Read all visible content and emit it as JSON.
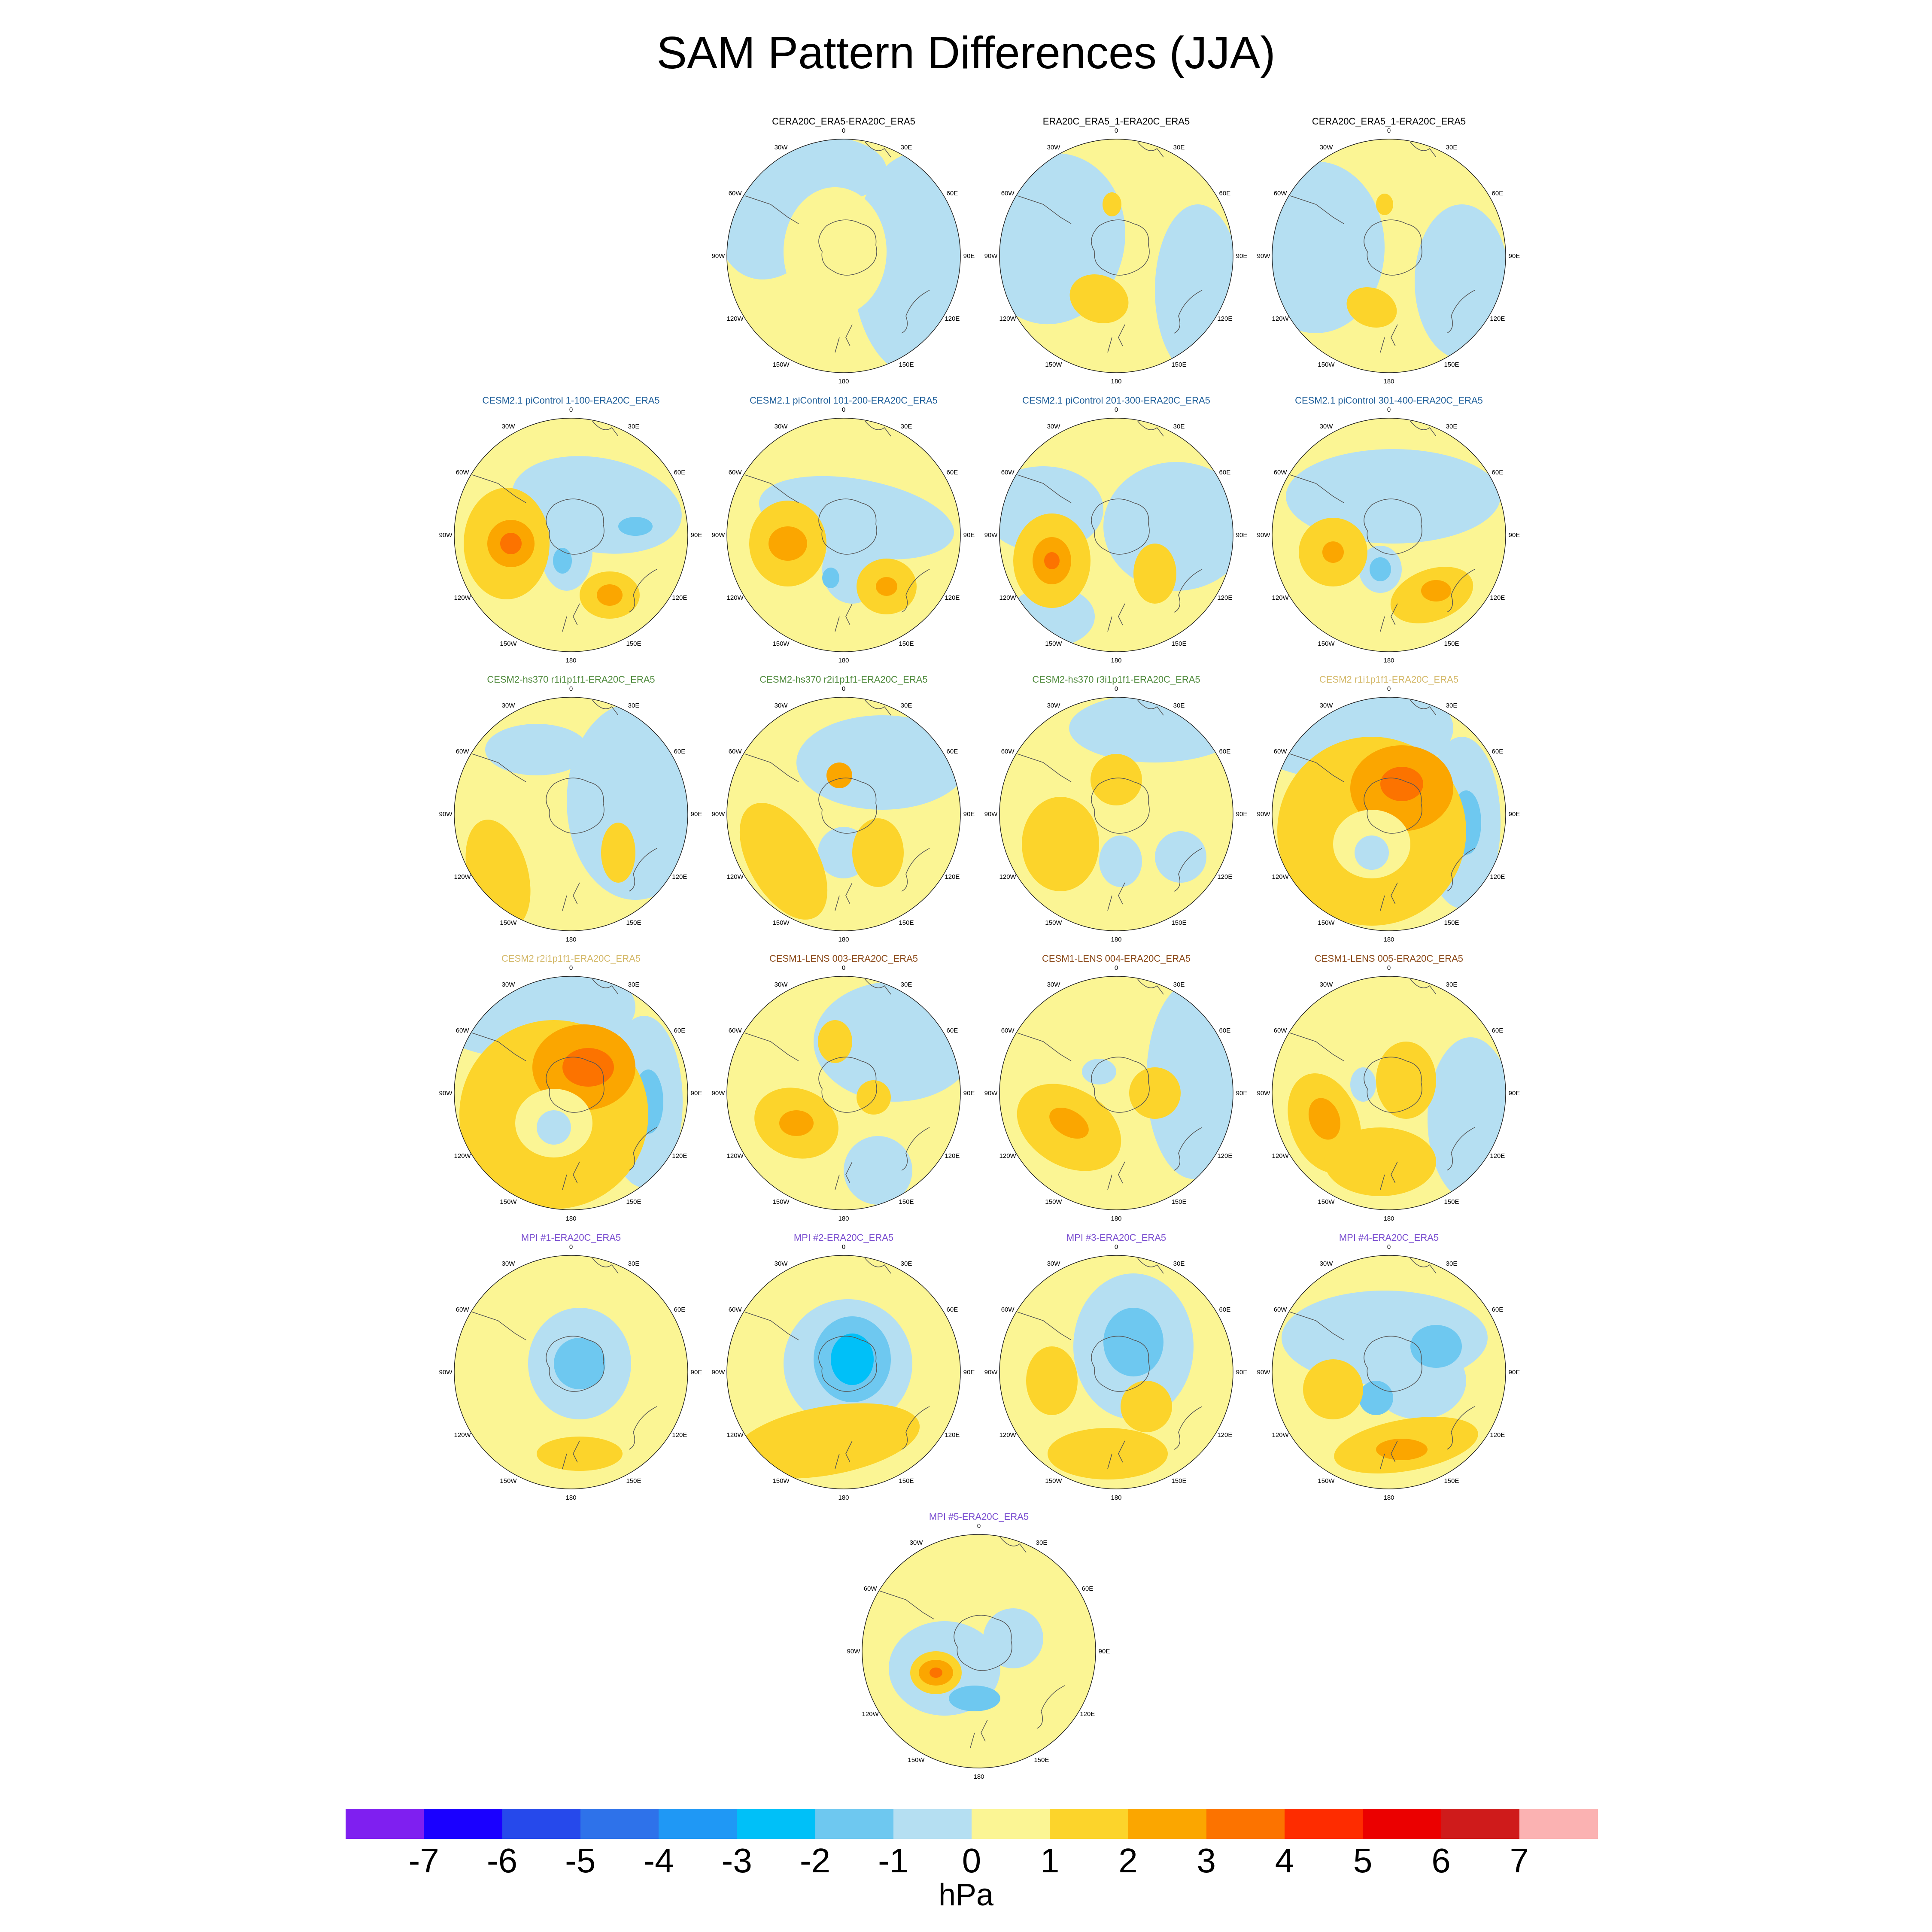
{
  "title": "SAM Pattern Differences (JJA)",
  "units": "hPa",
  "lon_labels": [
    "0",
    "30E",
    "60E",
    "90E",
    "120E",
    "150E",
    "180",
    "150W",
    "120W",
    "90W",
    "60W",
    "30W"
  ],
  "colorbar": {
    "colors": [
      "#7f1ff0",
      "#1a00ff",
      "#2649eb",
      "#2e72ea",
      "#1f98f5",
      "#00c0f8",
      "#6ec8f0",
      "#b5dff2",
      "#fbf594",
      "#fcd42b",
      "#fba600",
      "#fc7300",
      "#fe2c00",
      "#eb0000",
      "#cf1b1b",
      "#fbb2b2"
    ],
    "ticks": [
      "-7",
      "-6",
      "-5",
      "-4",
      "-3",
      "-2",
      "-1",
      "0",
      "1",
      "2",
      "3",
      "4",
      "5",
      "6",
      "7"
    ]
  },
  "panels": [
    {
      "title": "CERA20C_ERA5-ERA20C_ERA5",
      "title_color": "#000000"
    },
    {
      "title": "ERA20C_ERA5_1-ERA20C_ERA5",
      "title_color": "#000000"
    },
    {
      "title": "CERA20C_ERA5_1-ERA20C_ERA5",
      "title_color": "#000000"
    },
    {
      "title": "CESM2.1 piControl 1-100-ERA20C_ERA5",
      "title_color": "#1f5f9a"
    },
    {
      "title": "CESM2.1 piControl 101-200-ERA20C_ERA5",
      "title_color": "#1f5f9a"
    },
    {
      "title": "CESM2.1 piControl 201-300-ERA20C_ERA5",
      "title_color": "#1f5f9a"
    },
    {
      "title": "CESM2.1 piControl 301-400-ERA20C_ERA5",
      "title_color": "#1f5f9a"
    },
    {
      "title": "CESM2-hs370 r1i1p1f1-ERA20C_ERA5",
      "title_color": "#4f8a3c"
    },
    {
      "title": "CESM2-hs370 r2i1p1f1-ERA20C_ERA5",
      "title_color": "#4f8a3c"
    },
    {
      "title": "CESM2-hs370 r3i1p1f1-ERA20C_ERA5",
      "title_color": "#4f8a3c"
    },
    {
      "title": "CESM2 r1i1p1f1-ERA20C_ERA5",
      "title_color": "#d4b96a"
    },
    {
      "title": "CESM2 r2i1p1f1-ERA20C_ERA5",
      "title_color": "#d4b96a"
    },
    {
      "title": "CESM1-LENS 003-ERA20C_ERA5",
      "title_color": "#8b4a1a"
    },
    {
      "title": "CESM1-LENS 004-ERA20C_ERA5",
      "title_color": "#8b4a1a"
    },
    {
      "title": "CESM1-LENS 005-ERA20C_ERA5",
      "title_color": "#8b4a1a"
    },
    {
      "title": "MPI #1-ERA20C_ERA5",
      "title_color": "#7b4fd0"
    },
    {
      "title": "MPI #2-ERA20C_ERA5",
      "title_color": "#7b4fd0"
    },
    {
      "title": "MPI #3-ERA20C_ERA5",
      "title_color": "#7b4fd0"
    },
    {
      "title": "MPI #4-ERA20C_ERA5",
      "title_color": "#7b4fd0"
    },
    {
      "title": "MPI #5-ERA20C_ERA5",
      "title_color": "#7b4fd0"
    }
  ]
}
